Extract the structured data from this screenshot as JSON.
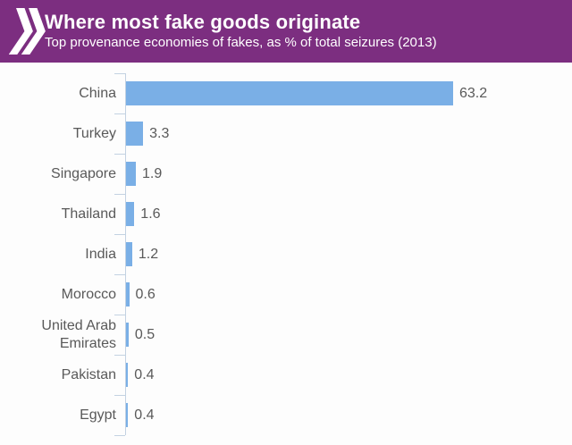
{
  "header": {
    "title": "Where most fake goods originate",
    "subtitle": "Top provenance economies of fakes, as % of total seizures (2013)",
    "logo_icon": "double-chevron-icon",
    "background_color": "#7c2e80",
    "text_color": "#ffffff"
  },
  "chart_data": {
    "type": "bar",
    "orientation": "horizontal",
    "title": "Where most fake goods originate",
    "subtitle": "Top provenance economies of fakes, as % of total seizures (2013)",
    "categories": [
      "China",
      "Turkey",
      "Singapore",
      "Thailand",
      "India",
      "Morocco",
      "United Arab Emirates",
      "Pakistan",
      "Egypt"
    ],
    "values": [
      63.2,
      3.3,
      1.9,
      1.6,
      1.2,
      0.6,
      0.5,
      0.4,
      0.4
    ],
    "value_format": "one-decimal",
    "xlabel": "",
    "ylabel": "",
    "xlim": [
      0,
      70
    ],
    "grid": false,
    "legend": false,
    "data_labels": true,
    "bar_color": "#7aafe6",
    "axis_color": "#c3d2e2",
    "label_color": "#595959"
  }
}
